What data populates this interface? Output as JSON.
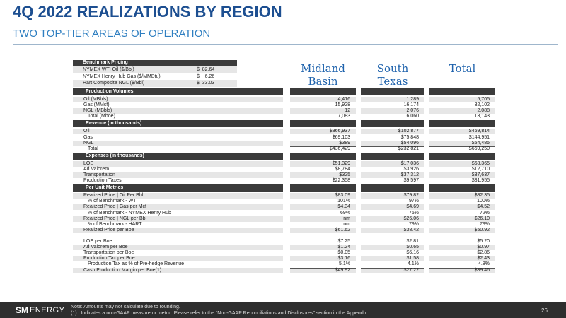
{
  "header": {
    "title": "4Q 2022 REALIZATIONS BY REGION",
    "subtitle": "TWO TOP-TIER AREAS OF OPERATION"
  },
  "benchmark": {
    "title": "Benchmark Pricing",
    "rows": [
      [
        "NYMEX WTI Oil ($/Bbl)",
        "$  82.64"
      ],
      [
        "NYMEX Henry Hub Gas ($/MMBtu)",
        "$    6.26"
      ],
      [
        "Hart Composite NGL ($/Bbl)",
        "$  33.03"
      ]
    ]
  },
  "table": {
    "columns": [
      "Midland Basin",
      "South Texas",
      "Total"
    ],
    "sections": [
      {
        "title": "Production Volumes",
        "rows": [
          [
            "Oil (MBbls)",
            "4,416",
            "1,289",
            "5,705"
          ],
          [
            "Gas (MMcf)",
            "15,928",
            "16,174",
            "32,102"
          ],
          [
            "NGL (MBbls)",
            "12",
            "2,076",
            "2,088"
          ],
          [
            "Total (Mboe)",
            "7,083",
            "6,060",
            "13,143"
          ]
        ]
      },
      {
        "title": "Revenue (in thousands)",
        "rows": [
          [
            "Oil",
            "$366,937",
            "$102,877",
            "$469,814"
          ],
          [
            "Gas",
            "$69,103",
            "$75,848",
            "$144,951"
          ],
          [
            "NGL",
            "$389",
            "$54,096",
            "$54,485"
          ],
          [
            "Total",
            "$436,429",
            "$232,821",
            "$669,250"
          ]
        ]
      },
      {
        "title": "Expenses (in thousands)",
        "rows": [
          [
            "LOE",
            "$51,329",
            "$17,036",
            "$68,365"
          ],
          [
            "Ad Valorem",
            "$8,784",
            "$3,926",
            "$12,710"
          ],
          [
            "Transportation",
            "$325",
            "$37,312",
            "$37,637"
          ],
          [
            "Production Taxes",
            "$22,358",
            "$9,597",
            "$31,955"
          ]
        ]
      },
      {
        "title": "Per Unit Metrics",
        "rows": [
          [
            "Realized Price | Oil Per Bbl",
            "$83.09",
            "$79.82",
            "$82.35"
          ],
          [
            "% of Benchmark - WTI",
            "101%",
            "97%",
            "100%"
          ],
          [
            "Realized Price | Gas per Mcf",
            "$4.34",
            "$4.69",
            "$4.52"
          ],
          [
            "% of Benchmark - NYMEX Henry Hub",
            "69%",
            "75%",
            "72%"
          ],
          [
            "Realized Price | NGL per Bbl",
            "nm",
            "$26.06",
            "$26.10"
          ],
          [
            "% of Benchmark - HART",
            "nm",
            "79%",
            "79%"
          ],
          [
            "Realized Price per Boe",
            "$61.62",
            "$38.42",
            "$50.92"
          ],
          [
            "LOE per Boe",
            "$7.25",
            "$2.81",
            "$5.20"
          ],
          [
            "Ad Valorem per Boe",
            "$1.24",
            "$0.65",
            "$0.97"
          ],
          [
            "Transportation per Boe",
            "$0.05",
            "$6.16",
            "$2.86"
          ],
          [
            "Production Tax per Boe",
            "$3.16",
            "$1.58",
            "$2.43"
          ],
          [
            "Production Tax as % of Pre-hedge Revenue",
            "5.1%",
            "4.1%",
            "4.8%"
          ],
          [
            "Cash Production Margin per Boe(1)",
            "$49.92",
            "$27.22",
            "$39.46"
          ]
        ]
      }
    ]
  },
  "footer": {
    "logo": "SM",
    "logo2": "ENERGY",
    "notes": [
      "Note: Amounts may not calculate due to rounding.",
      "(1)   Indicates a non-GAAP measure or metric. Please refer to the “Non-GAAP Reconciliations and Disclosures” section in the Appendix."
    ],
    "page": "26"
  }
}
